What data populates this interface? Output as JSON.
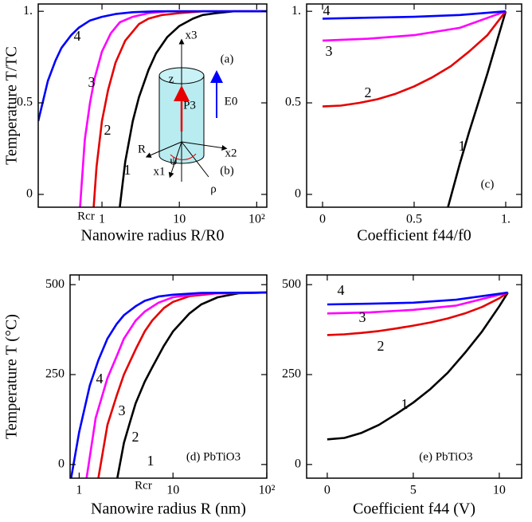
{
  "chart_data": [
    {
      "type": "line",
      "xlabel": "Nanowire radius   R/R0",
      "ylabel": "Temperature   T/TC",
      "xscale": "log",
      "xlim": [
        0.15,
        135
      ],
      "ylim": [
        -0.07,
        1.04
      ],
      "xticks": [
        1,
        10,
        {
          "value": 100,
          "label": "10²"
        }
      ],
      "yticks": [
        0,
        0.5,
        {
          "value": 1,
          "label": "1."
        }
      ],
      "annotations": [
        "(a)",
        "(b)",
        "x3",
        "z",
        "P3",
        "E0",
        "R",
        "x2",
        "x1",
        "ψ",
        "ρ",
        "Rcr"
      ],
      "series": [
        {
          "name": "1",
          "color": "#000000",
          "x": [
            1.7,
            2,
            2.5,
            3,
            4,
            5,
            7,
            10,
            15,
            20,
            30,
            50,
            135
          ],
          "values": [
            -0.07,
            0.18,
            0.4,
            0.53,
            0.68,
            0.77,
            0.86,
            0.92,
            0.96,
            0.98,
            0.99,
            1,
            1
          ]
        },
        {
          "name": "2",
          "color": "#e60000",
          "x": [
            0.78,
            0.85,
            1,
            1.2,
            1.5,
            2,
            3,
            4,
            6,
            10,
            20,
            135
          ],
          "values": [
            -0.07,
            0.15,
            0.4,
            0.57,
            0.72,
            0.84,
            0.93,
            0.96,
            0.98,
            0.99,
            1,
            1
          ]
        },
        {
          "name": "3",
          "color": "#ff00ff",
          "x": [
            0.52,
            0.6,
            0.7,
            0.8,
            1,
            1.3,
            1.7,
            2.5,
            4,
            7,
            135
          ],
          "values": [
            -0.07,
            0.3,
            0.5,
            0.63,
            0.78,
            0.88,
            0.94,
            0.97,
            0.99,
            1,
            1
          ]
        },
        {
          "name": "4",
          "color": "#0000ff",
          "x": [
            0.15,
            0.2,
            0.25,
            0.3,
            0.4,
            0.5,
            0.7,
            1,
            1.5,
            2.5,
            5,
            135
          ],
          "values": [
            0.4,
            0.62,
            0.73,
            0.8,
            0.87,
            0.91,
            0.95,
            0.97,
            0.985,
            0.995,
            1,
            1
          ]
        }
      ]
    },
    {
      "type": "line",
      "xlabel": "Coefficient   f44/f0",
      "xscale": "linear",
      "xlim": [
        -0.087,
        1.087
      ],
      "ylim": [
        -0.07,
        1.04
      ],
      "xticks": [
        0,
        0.5,
        {
          "value": 1,
          "label": "1."
        }
      ],
      "yticks": [
        0,
        0.5,
        {
          "value": 1,
          "label": "1."
        }
      ],
      "annotations": [
        "(c)"
      ],
      "series": [
        {
          "name": "1",
          "color": "#000000",
          "x": [
            0.685,
            0.75,
            0.8,
            0.85,
            0.9,
            0.95,
            1
          ],
          "values": [
            -0.07,
            0.17,
            0.34,
            0.5,
            0.66,
            0.83,
            1
          ]
        },
        {
          "name": "2",
          "color": "#e60000",
          "x": [
            0,
            0.1,
            0.2,
            0.3,
            0.4,
            0.5,
            0.6,
            0.7,
            0.8,
            0.9,
            1
          ],
          "values": [
            0.48,
            0.485,
            0.5,
            0.52,
            0.55,
            0.59,
            0.64,
            0.7,
            0.78,
            0.87,
            1
          ]
        },
        {
          "name": "3",
          "color": "#ff00ff",
          "x": [
            0,
            0.25,
            0.5,
            0.75,
            1
          ],
          "values": [
            0.84,
            0.85,
            0.87,
            0.91,
            1
          ]
        },
        {
          "name": "4",
          "color": "#0000ff",
          "x": [
            0,
            0.25,
            0.5,
            0.75,
            1
          ],
          "values": [
            0.96,
            0.965,
            0.97,
            0.98,
            1
          ]
        }
      ]
    },
    {
      "type": "line",
      "xlabel": "Nanowire radius   R (nm)",
      "ylabel": "Temperature   T (°C)",
      "xscale": "log",
      "xlim": [
        0.8,
        100
      ],
      "ylim": [
        -38,
        527
      ],
      "xticks": [
        1,
        10,
        {
          "value": 100,
          "label": "10²"
        }
      ],
      "yticks": [
        0,
        250,
        500
      ],
      "annotations": [
        "(d) PbTiO3",
        "Rcr"
      ],
      "series": [
        {
          "name": "1",
          "color": "#000000",
          "x": [
            2.55,
            3,
            3.5,
            4,
            5,
            6,
            8,
            10,
            15,
            20,
            30,
            50,
            100
          ],
          "values": [
            -38,
            60,
            120,
            170,
            230,
            270,
            330,
            370,
            420,
            445,
            465,
            476,
            478
          ]
        },
        {
          "name": "2",
          "color": "#e60000",
          "x": [
            1.6,
            2,
            2.5,
            3,
            4,
            5,
            6,
            8,
            10,
            15,
            30,
            100
          ],
          "values": [
            -38,
            110,
            190,
            250,
            320,
            370,
            400,
            435,
            452,
            468,
            476,
            478
          ]
        },
        {
          "name": "3",
          "color": "#ff00ff",
          "x": [
            1.2,
            1.5,
            2,
            2.5,
            3,
            4,
            5,
            7,
            10,
            20,
            100
          ],
          "values": [
            -38,
            130,
            240,
            300,
            350,
            400,
            425,
            450,
            465,
            475,
            478
          ]
        },
        {
          "name": "4",
          "color": "#0000ff",
          "x": [
            0.82,
            1,
            1.3,
            1.6,
            2,
            2.5,
            3,
            4,
            5,
            7,
            10,
            20,
            100
          ],
          "values": [
            -38,
            90,
            220,
            290,
            350,
            390,
            415,
            440,
            455,
            467,
            472,
            477,
            478
          ]
        }
      ]
    },
    {
      "type": "line",
      "xlabel": "Coefficient   f44 (V)",
      "xscale": "linear",
      "xlim": [
        -1.2,
        11.3
      ],
      "ylim": [
        -38,
        527
      ],
      "xticks": [
        0,
        5,
        10
      ],
      "yticks": [
        0,
        250,
        500
      ],
      "annotations": [
        "(e) PbTiO3"
      ],
      "series": [
        {
          "name": "1",
          "color": "#000000",
          "x": [
            0,
            1,
            2,
            3,
            4,
            5,
            6,
            7,
            8,
            9,
            10,
            10.5
          ],
          "values": [
            70,
            74,
            88,
            110,
            140,
            172,
            210,
            255,
            310,
            370,
            440,
            478
          ]
        },
        {
          "name": "2",
          "color": "#e60000",
          "x": [
            0,
            1,
            2,
            3,
            4,
            5,
            6,
            7,
            8,
            9,
            10,
            10.5
          ],
          "values": [
            360,
            362,
            366,
            371,
            378,
            386,
            395,
            406,
            420,
            438,
            462,
            478
          ]
        },
        {
          "name": "3",
          "color": "#ff00ff",
          "x": [
            0,
            2.5,
            5,
            7.5,
            10.5
          ],
          "values": [
            420,
            423,
            430,
            442,
            478
          ]
        },
        {
          "name": "4",
          "color": "#0000ff",
          "x": [
            0,
            2.5,
            5,
            7.5,
            10.5
          ],
          "values": [
            445,
            447,
            450,
            458,
            478
          ]
        }
      ]
    }
  ]
}
